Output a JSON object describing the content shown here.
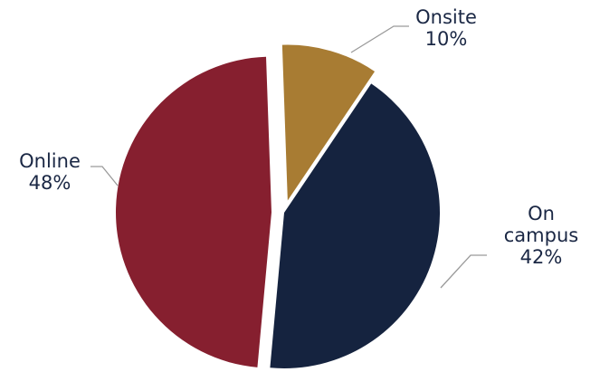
{
  "chart_data": {
    "type": "pie",
    "slices": [
      {
        "label": "Onsite",
        "label_lines": [
          "Onsite"
        ],
        "value_label": "10%",
        "value": 10,
        "color": "#a87c33"
      },
      {
        "label": "On campus",
        "label_lines": [
          "On",
          "campus"
        ],
        "value_label": "42%",
        "value": 42,
        "color": "#15233f"
      },
      {
        "label": "Online",
        "label_lines": [
          "Online"
        ],
        "value_label": "48%",
        "value": 48,
        "color": "#861f2f"
      }
    ],
    "legend": "none"
  }
}
